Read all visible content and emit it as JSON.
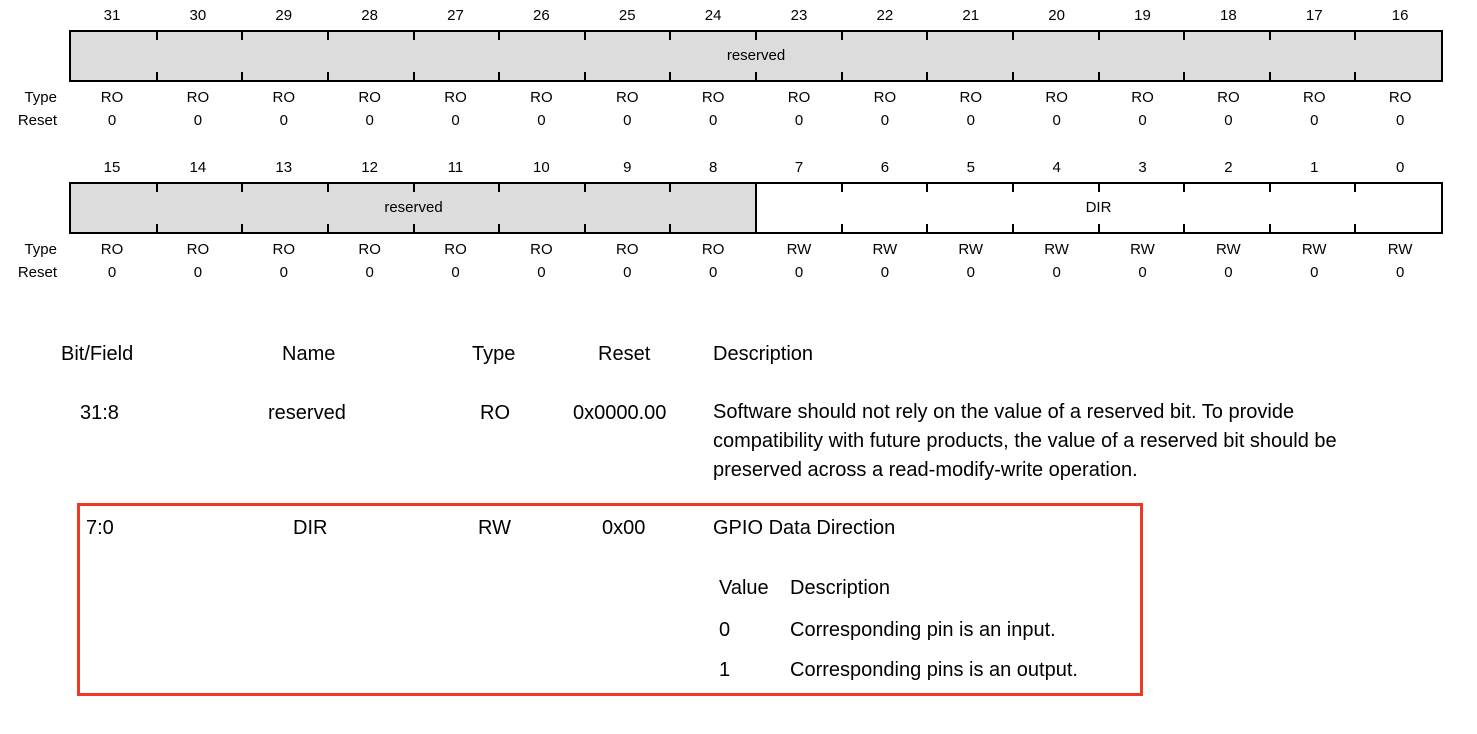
{
  "register_map": {
    "type_label": "Type",
    "reset_label": "Reset",
    "rows": [
      {
        "bits": [
          "31",
          "30",
          "29",
          "28",
          "27",
          "26",
          "25",
          "24",
          "23",
          "22",
          "21",
          "20",
          "19",
          "18",
          "17",
          "16"
        ],
        "types": [
          "RO",
          "RO",
          "RO",
          "RO",
          "RO",
          "RO",
          "RO",
          "RO",
          "RO",
          "RO",
          "RO",
          "RO",
          "RO",
          "RO",
          "RO",
          "RO"
        ],
        "resets": [
          "0",
          "0",
          "0",
          "0",
          "0",
          "0",
          "0",
          "0",
          "0",
          "0",
          "0",
          "0",
          "0",
          "0",
          "0",
          "0"
        ],
        "fields": [
          {
            "name": "reserved",
            "bit_span": 16,
            "access": "RO"
          }
        ]
      },
      {
        "bits": [
          "15",
          "14",
          "13",
          "12",
          "11",
          "10",
          "9",
          "8",
          "7",
          "6",
          "5",
          "4",
          "3",
          "2",
          "1",
          "0"
        ],
        "types": [
          "RO",
          "RO",
          "RO",
          "RO",
          "RO",
          "RO",
          "RO",
          "RO",
          "RW",
          "RW",
          "RW",
          "RW",
          "RW",
          "RW",
          "RW",
          "RW"
        ],
        "resets": [
          "0",
          "0",
          "0",
          "0",
          "0",
          "0",
          "0",
          "0",
          "0",
          "0",
          "0",
          "0",
          "0",
          "0",
          "0",
          "0"
        ],
        "fields": [
          {
            "name": "reserved",
            "bit_span": 8,
            "access": "RO"
          },
          {
            "name": "DIR",
            "bit_span": 8,
            "access": "RW"
          }
        ]
      }
    ]
  },
  "field_table": {
    "headers": {
      "bitfield": "Bit/Field",
      "name": "Name",
      "type": "Type",
      "reset": "Reset",
      "description": "Description"
    },
    "rows": [
      {
        "bitfield": "31:8",
        "name": "reserved",
        "type": "RO",
        "reset": "0x0000.00",
        "description_lines": [
          "Software should not rely on the value of a reserved bit. To provide",
          "compatibility with future products, the value of a reserved bit should be",
          "preserved across a read-modify-write operation."
        ]
      },
      {
        "bitfield": "7:0",
        "name": "DIR",
        "type": "RW",
        "reset": "0x00",
        "description": "GPIO Data Direction",
        "value_table": {
          "headers": {
            "value": "Value",
            "description": "Description"
          },
          "rows": [
            {
              "value": "0",
              "description": "Corresponding pin is an input."
            },
            {
              "value": "1",
              "description": "Corresponding pins is an output."
            }
          ]
        },
        "highlighted": true
      }
    ]
  },
  "colors": {
    "reserved_fill": "#dcdcdc",
    "highlight_border": "#ee3a24"
  }
}
